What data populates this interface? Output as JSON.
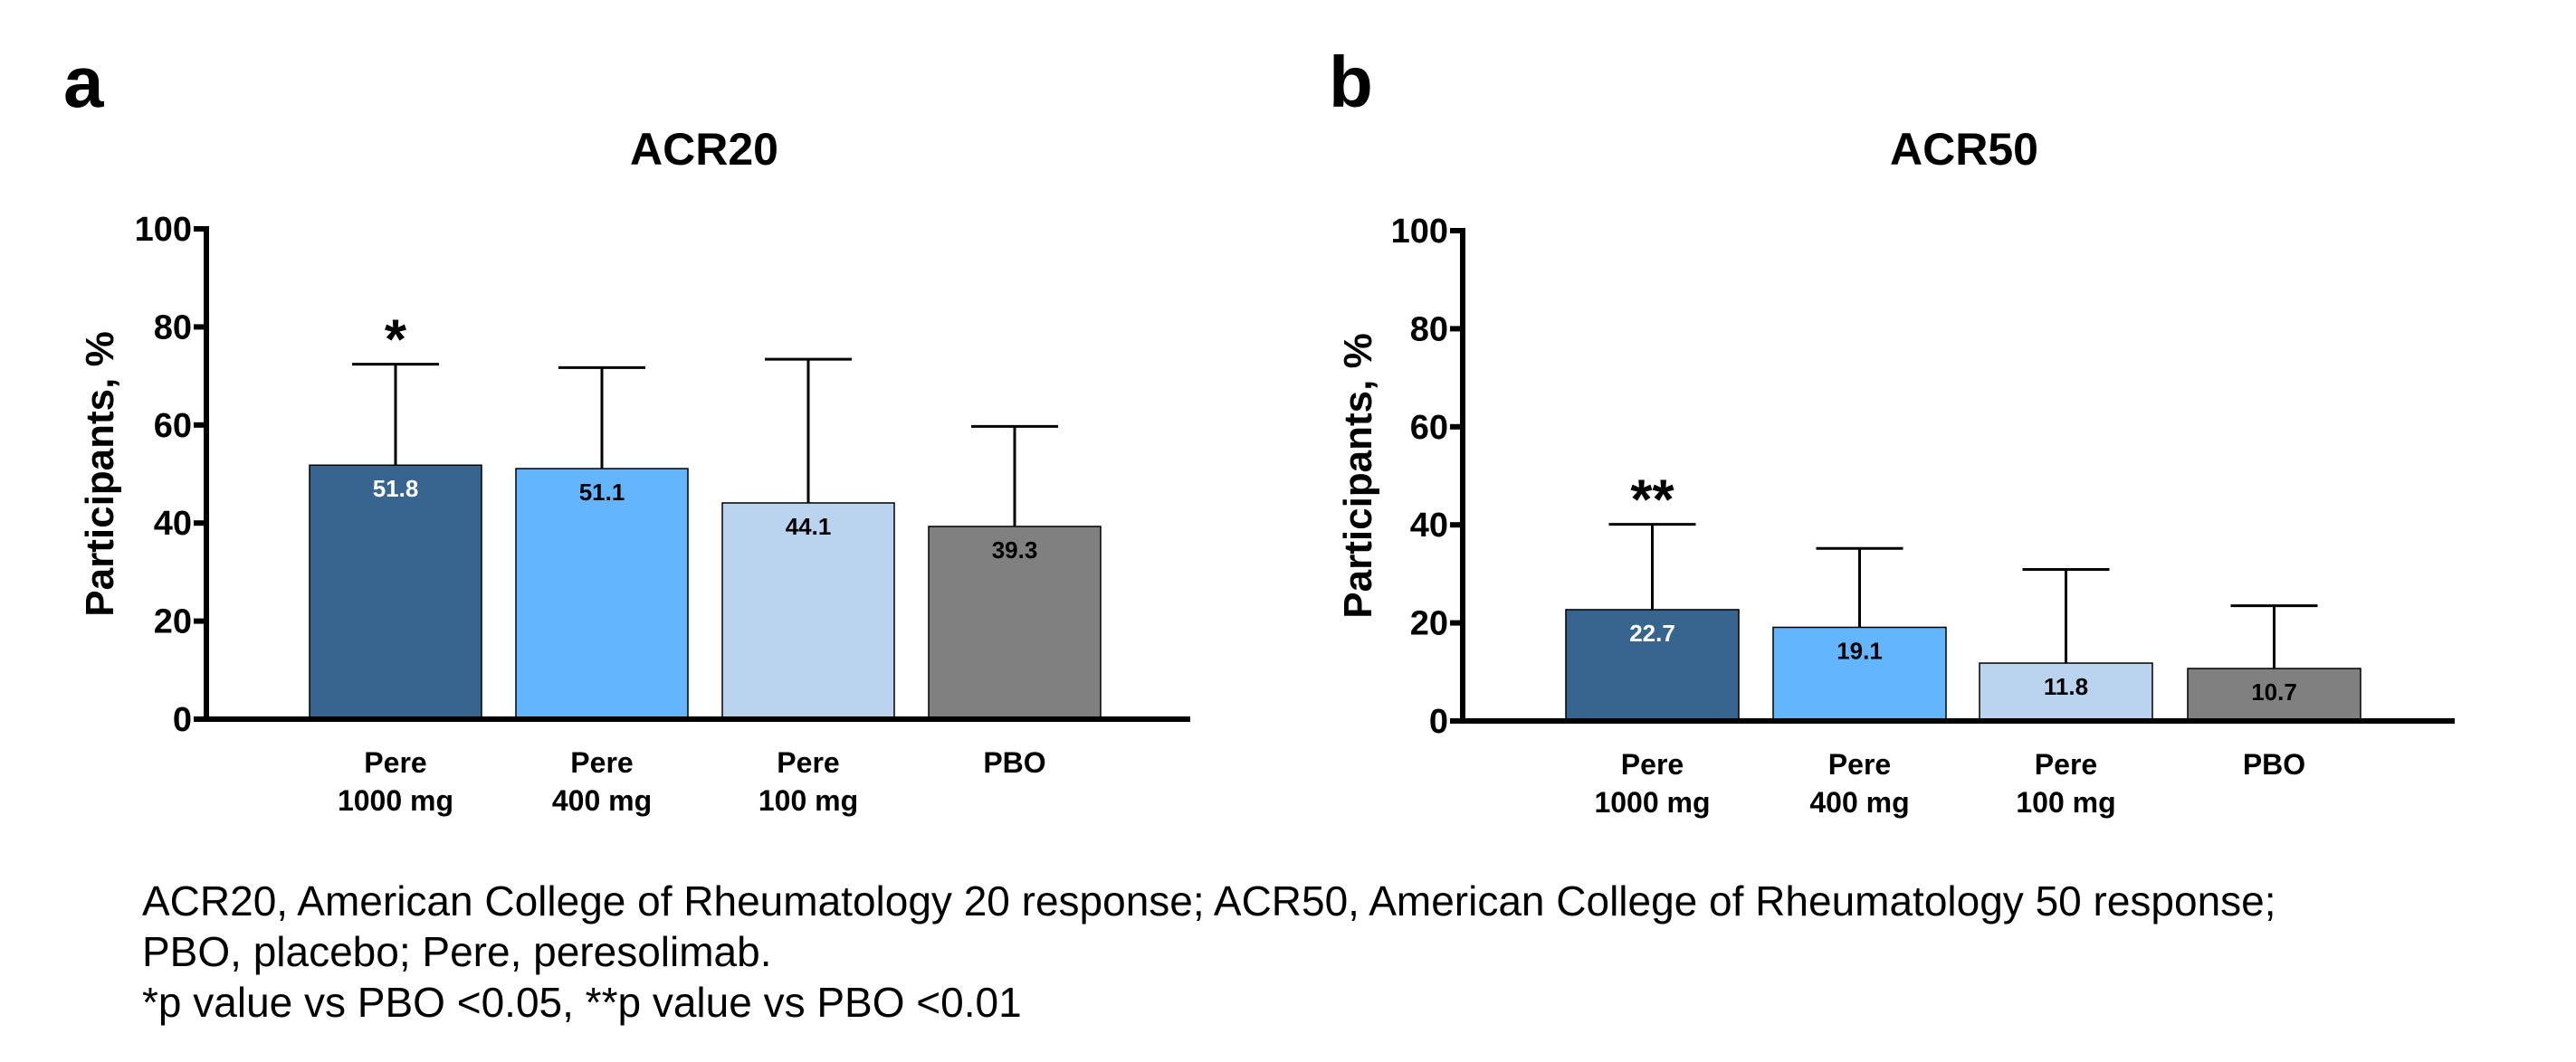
{
  "chart_data": [
    {
      "type": "bar",
      "panel": "a",
      "title": "ACR20",
      "ylabel": "Participants, %",
      "xlabel": "",
      "ylim": [
        0,
        100
      ],
      "yticks": [
        0,
        20,
        40,
        60,
        80,
        100
      ],
      "categories": [
        [
          "Pere",
          "1000 mg"
        ],
        [
          "Pere",
          "400 mg"
        ],
        [
          "Pere",
          "100 mg"
        ],
        [
          "PBO"
        ]
      ],
      "values": [
        51.8,
        51.1,
        44.1,
        39.3
      ],
      "value_labels": [
        "51.8",
        "51.1",
        "44.1",
        "39.3"
      ],
      "error_upper": [
        72.4,
        71.7,
        73.4,
        59.7
      ],
      "significance": [
        "*",
        "",
        "",
        ""
      ],
      "colors": [
        "#386490",
        "#63b6fd",
        "#bad3ef",
        "#808080"
      ],
      "label_colors": [
        "#ffffff",
        "#000000",
        "#000000",
        "#000000"
      ]
    },
    {
      "type": "bar",
      "panel": "b",
      "title": "ACR50",
      "ylabel": "Participants, %",
      "xlabel": "",
      "ylim": [
        0,
        100
      ],
      "yticks": [
        0,
        20,
        40,
        60,
        80,
        100
      ],
      "categories": [
        [
          "Pere",
          "1000 mg"
        ],
        [
          "Pere",
          "400 mg"
        ],
        [
          "Pere",
          "100 mg"
        ],
        [
          "PBO"
        ]
      ],
      "values": [
        22.7,
        19.1,
        11.8,
        10.7
      ],
      "value_labels": [
        "22.7",
        "19.1",
        "11.8",
        "10.7"
      ],
      "error_upper": [
        40.1,
        35.2,
        30.9,
        23.5
      ],
      "significance": [
        "**",
        "",
        "",
        ""
      ],
      "colors": [
        "#386490",
        "#63b6fd",
        "#bad3ef",
        "#808080"
      ],
      "label_colors": [
        "#ffffff",
        "#000000",
        "#000000",
        "#000000"
      ]
    }
  ],
  "caption": {
    "line1": "ACR20, American College of Rheumatology 20 response; ACR50, American College of Rheumatology 50 response;",
    "line2": "PBO, placebo; Pere, peresolimab.",
    "line3": "*p value vs PBO <0.05, **p value vs PBO <0.01"
  }
}
